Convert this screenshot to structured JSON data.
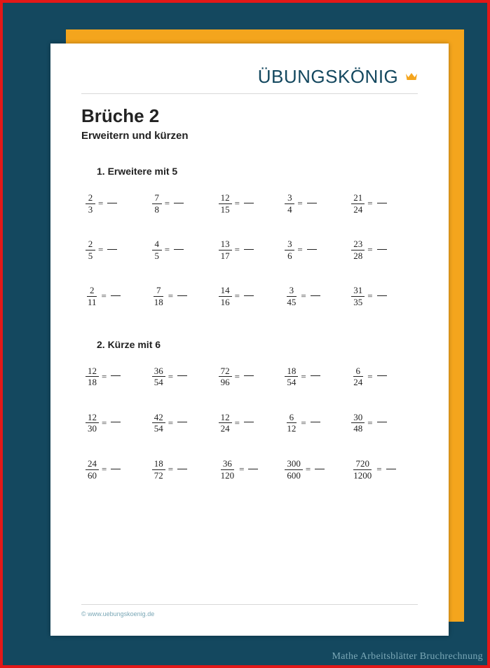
{
  "colors": {
    "page_bg": "#14485f",
    "border": "#e31818",
    "back_sheet": "#f4a51d",
    "sheet": "#ffffff",
    "brand_text": "#14485f",
    "rule": "#d9d9d9",
    "text": "#222222",
    "footer_text": "#7aa7b6",
    "caption_text": "#7aa7b6",
    "crown_fill": "#f4a51d"
  },
  "brand": "ÜBUNGSKÖNIG",
  "title": "Brüche 2",
  "subtitle": "Erweitern und kürzen",
  "tasks": [
    {
      "number": "1.",
      "label": "Erweitere mit 5",
      "rows": [
        [
          {
            "n": "2",
            "d": "3"
          },
          {
            "n": "7",
            "d": "8"
          },
          {
            "n": "12",
            "d": "15"
          },
          {
            "n": "3",
            "d": "4"
          },
          {
            "n": "21",
            "d": "24"
          }
        ],
        [
          {
            "n": "2",
            "d": "5"
          },
          {
            "n": "4",
            "d": "5"
          },
          {
            "n": "13",
            "d": "17"
          },
          {
            "n": "3",
            "d": "6"
          },
          {
            "n": "23",
            "d": "28"
          }
        ],
        [
          {
            "n": "2",
            "d": "11"
          },
          {
            "n": "7",
            "d": "18"
          },
          {
            "n": "14",
            "d": "16"
          },
          {
            "n": "3",
            "d": "45"
          },
          {
            "n": "31",
            "d": "35"
          }
        ]
      ]
    },
    {
      "number": "2.",
      "label": "Kürze mit 6",
      "rows": [
        [
          {
            "n": "12",
            "d": "18"
          },
          {
            "n": "36",
            "d": "54"
          },
          {
            "n": "72",
            "d": "96"
          },
          {
            "n": "18",
            "d": "54"
          },
          {
            "n": "6",
            "d": "24"
          }
        ],
        [
          {
            "n": "12",
            "d": "30"
          },
          {
            "n": "42",
            "d": "54"
          },
          {
            "n": "12",
            "d": "24"
          },
          {
            "n": "6",
            "d": "12"
          },
          {
            "n": "30",
            "d": "48"
          }
        ],
        [
          {
            "n": "24",
            "d": "60"
          },
          {
            "n": "18",
            "d": "72"
          },
          {
            "n": "36",
            "d": "120"
          },
          {
            "n": "300",
            "d": "600"
          },
          {
            "n": "720",
            "d": "1200"
          }
        ]
      ]
    }
  ],
  "footer": "© www.uebungskoenig.de",
  "caption": "Mathe Arbeitsblätter Bruchrechnung"
}
